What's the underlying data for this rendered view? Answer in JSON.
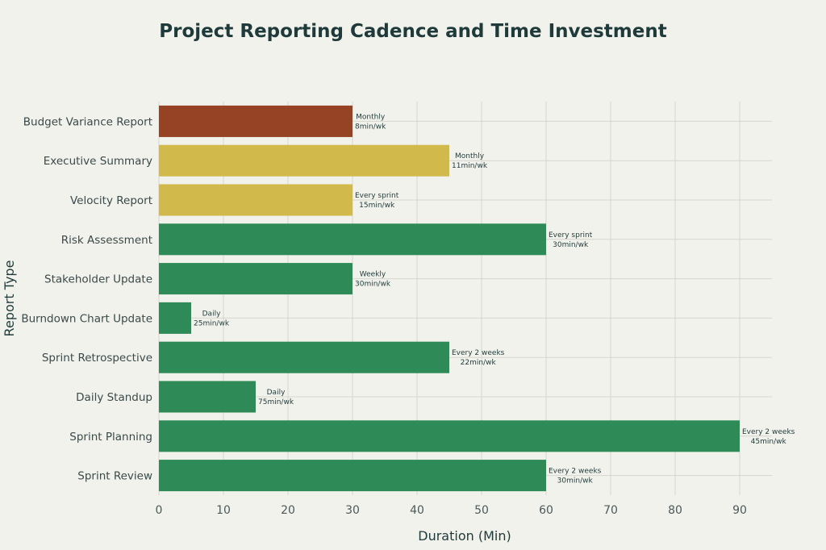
{
  "chart_data": {
    "type": "bar",
    "orientation": "horizontal",
    "title": "Project Reporting Cadence and Time Investment",
    "xlabel": "Duration (Min)",
    "ylabel": "Report Type",
    "xlim": [
      0,
      95
    ],
    "xticks": [
      "0",
      "10",
      "20",
      "30",
      "40",
      "50",
      "60",
      "70",
      "80",
      "90"
    ],
    "grid": true,
    "categories": [
      "Budget Variance Report",
      "Executive Summary",
      "Velocity Report",
      "Risk Assessment",
      "Stakeholder Update",
      "Burndown Chart Update",
      "Sprint Retrospective",
      "Daily Standup",
      "Sprint Planning",
      "Sprint Review"
    ],
    "values": [
      30,
      45,
      30,
      60,
      30,
      5,
      45,
      15,
      90,
      60
    ],
    "frequency": [
      "Monthly",
      "Monthly",
      "Every sprint",
      "Every sprint",
      "Weekly",
      "Daily",
      "Every 2 weeks",
      "Daily",
      "Every 2 weeks",
      "Every 2 weeks"
    ],
    "weekly_time": [
      "8min/wk",
      "11min/wk",
      "15min/wk",
      "30min/wk",
      "30min/wk",
      "25min/wk",
      "22min/wk",
      "75min/wk",
      "45min/wk",
      "30min/wk"
    ],
    "colors": [
      "#964325",
      "#d1b94b",
      "#d1b94b",
      "#2e8b57",
      "#2e8b57",
      "#2e8b57",
      "#2e8b57",
      "#2e8b57",
      "#2e8b57",
      "#2e8b57"
    ]
  }
}
